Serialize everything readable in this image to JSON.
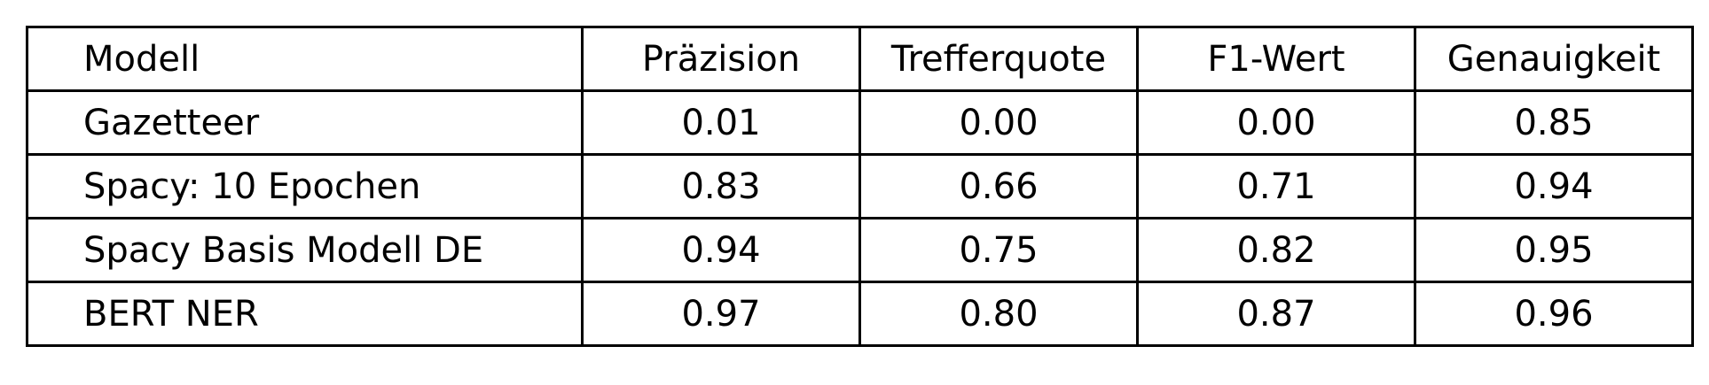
{
  "table": {
    "headers": [
      "Modell",
      "Präzision",
      "Trefferquote",
      "F1-Wert",
      "Genauigkeit"
    ],
    "rows": [
      [
        "Gazetteer",
        "0.01",
        "0.00",
        "0.00",
        "0.85"
      ],
      [
        "Spacy: 10 Epochen",
        "0.83",
        "0.66",
        "0.71",
        "0.94"
      ],
      [
        "Spacy Basis Modell DE",
        "0.94",
        "0.75",
        "0.82",
        "0.95"
      ],
      [
        "BERT NER",
        "0.97",
        "0.80",
        "0.87",
        "0.96"
      ]
    ]
  }
}
